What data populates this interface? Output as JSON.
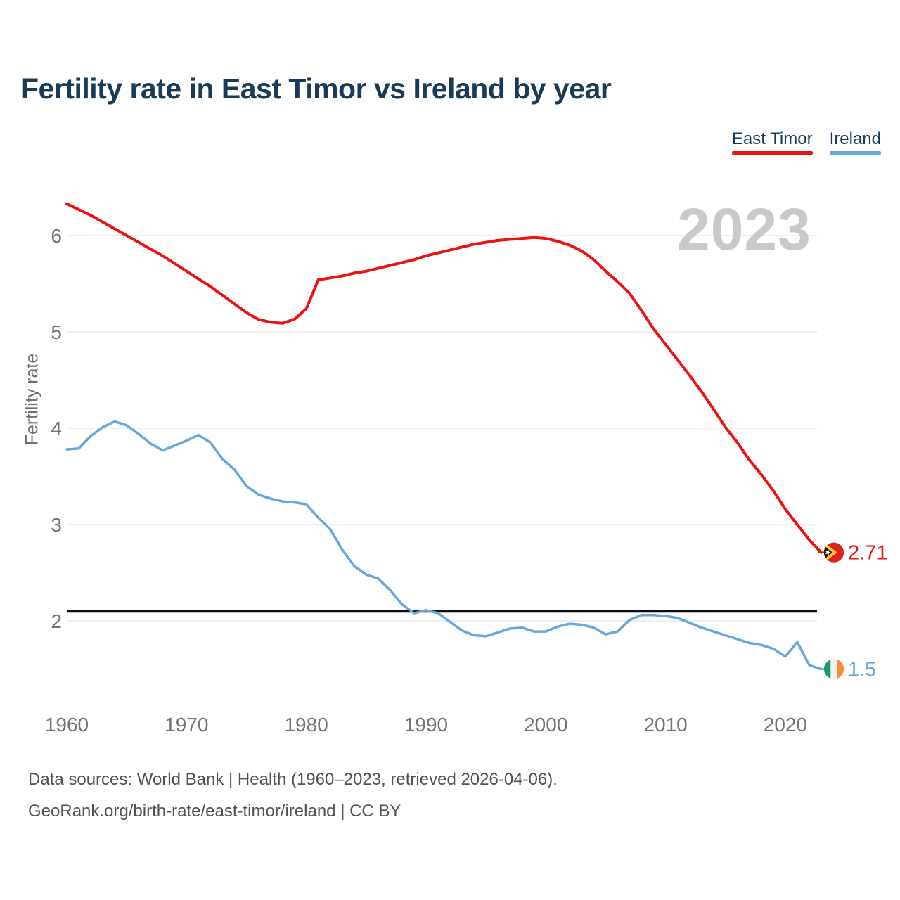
{
  "title": "Fertility rate in East Timor vs Ireland by year",
  "watermark": "2023",
  "legend": [
    {
      "label": "East Timor",
      "color": "#ee1111"
    },
    {
      "label": "Ireland",
      "color": "#66a7de"
    }
  ],
  "footer": {
    "line1": "Data sources: World Bank | Health (1960–2023, retrieved 2026-04-06).",
    "line2": "GeoRank.org/birth-rate/east-timor/ireland | CC BY"
  },
  "colors": {
    "accent_red": "#ee1111",
    "accent_blue": "#66a7de",
    "title_navy": "#1b3a57",
    "watermark_gray": "#c9c9c9",
    "axis_gray": "#737373",
    "gridline_gray": "#e8e8e8",
    "reference_black": "#0d0d0d"
  },
  "chart_data": {
    "type": "line",
    "title": "Fertility rate in East Timor vs Ireland by year",
    "xlabel": "",
    "ylabel": "Fertility rate",
    "grid": "horizontal",
    "legend_position": "top-right",
    "xlim": [
      1960,
      2023
    ],
    "ylim": [
      1.4,
      6.5
    ],
    "xticks": [
      1960,
      1970,
      1980,
      1990,
      2000,
      2010,
      2020
    ],
    "yticks": [
      2,
      3,
      4,
      5,
      6
    ],
    "x": [
      1960,
      1961,
      1962,
      1963,
      1964,
      1965,
      1966,
      1967,
      1968,
      1969,
      1970,
      1971,
      1972,
      1973,
      1974,
      1975,
      1976,
      1977,
      1978,
      1979,
      1980,
      1981,
      1982,
      1983,
      1984,
      1985,
      1986,
      1987,
      1988,
      1989,
      1990,
      1991,
      1992,
      1993,
      1994,
      1995,
      1996,
      1997,
      1998,
      1999,
      2000,
      2001,
      2002,
      2003,
      2004,
      2005,
      2006,
      2007,
      2008,
      2009,
      2010,
      2011,
      2012,
      2013,
      2014,
      2015,
      2016,
      2017,
      2018,
      2019,
      2020,
      2021,
      2022,
      2023
    ],
    "series": [
      {
        "name": "East Timor",
        "color": "#ee1111",
        "line_width": 4,
        "values": [
          6.33,
          6.27,
          6.21,
          6.14,
          6.07,
          6.0,
          5.93,
          5.86,
          5.79,
          5.71,
          5.63,
          5.55,
          5.47,
          5.38,
          5.29,
          5.2,
          5.13,
          5.1,
          5.09,
          5.13,
          5.24,
          5.54,
          5.56,
          5.58,
          5.61,
          5.63,
          5.66,
          5.69,
          5.72,
          5.75,
          5.79,
          5.82,
          5.85,
          5.88,
          5.91,
          5.93,
          5.95,
          5.96,
          5.97,
          5.98,
          5.97,
          5.94,
          5.9,
          5.84,
          5.75,
          5.63,
          5.52,
          5.4,
          5.22,
          5.03,
          4.87,
          4.71,
          4.55,
          4.38,
          4.2,
          4.01,
          3.85,
          3.67,
          3.52,
          3.35,
          3.16,
          3.0,
          2.84,
          2.71
        ]
      },
      {
        "name": "Ireland",
        "color": "#66a7de",
        "line_width": 3.5,
        "values": [
          3.78,
          3.79,
          3.92,
          4.01,
          4.07,
          4.03,
          3.94,
          3.84,
          3.77,
          3.82,
          3.87,
          3.93,
          3.85,
          3.68,
          3.57,
          3.4,
          3.31,
          3.27,
          3.24,
          3.23,
          3.21,
          3.07,
          2.95,
          2.74,
          2.57,
          2.48,
          2.44,
          2.32,
          2.17,
          2.08,
          2.11,
          2.08,
          1.99,
          1.9,
          1.85,
          1.84,
          1.88,
          1.92,
          1.93,
          1.89,
          1.89,
          1.94,
          1.97,
          1.96,
          1.93,
          1.86,
          1.89,
          2.01,
          2.06,
          2.06,
          2.05,
          2.03,
          1.98,
          1.93,
          1.89,
          1.85,
          1.81,
          1.77,
          1.75,
          1.71,
          1.63,
          1.78,
          1.54,
          1.5
        ]
      }
    ],
    "reference_line": {
      "value": 2.1,
      "color": "#0d0d0d"
    },
    "end_labels": [
      {
        "series": "East Timor",
        "value": "2.71",
        "flag_icon": "east-timor-flag-icon"
      },
      {
        "series": "Ireland",
        "value": "1.5",
        "flag_icon": "ireland-flag-icon"
      }
    ],
    "flag_colors": {
      "east_timor": {
        "red": "#dc241f",
        "yellow": "#ffc726",
        "black": "#141414",
        "star": "#ffffff"
      },
      "ireland": {
        "green": "#169b62",
        "white": "#f2f2f2",
        "orange": "#ff8a3c"
      }
    }
  }
}
